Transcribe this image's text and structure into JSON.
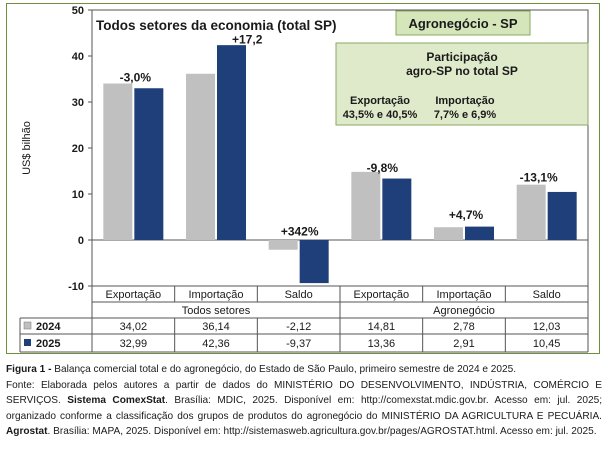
{
  "chart_data": {
    "type": "bar",
    "ylabel": "US$ bilhão",
    "ylim": [
      -10,
      50
    ],
    "yticks": [
      -10,
      0,
      10,
      20,
      30,
      40,
      50
    ],
    "grid": false,
    "categories": [
      "Exportação",
      "Importação",
      "Saldo",
      "Exportação",
      "Importação",
      "Saldo"
    ],
    "groups": [
      {
        "label": "Todos setores",
        "title": "Todos setores da economia (total SP)"
      },
      {
        "label": "Agronegócio",
        "title": "Agronegócio - SP"
      }
    ],
    "series": [
      {
        "name": "2024",
        "color": "#c0c0c0",
        "values": [
          34.02,
          36.14,
          -2.12,
          14.81,
          2.78,
          12.03
        ],
        "table": [
          "34,02",
          "36,14",
          "-2,12",
          "14,81",
          "2,78",
          "12,03"
        ]
      },
      {
        "name": "2025",
        "color": "#1f3f7a",
        "values": [
          32.99,
          42.36,
          -9.37,
          13.36,
          2.91,
          10.45
        ],
        "table": [
          "32,99",
          "42,36",
          "-9,37",
          "13,36",
          "2,91",
          "10,45"
        ]
      }
    ],
    "change_labels": [
      "-3,0%",
      "+17,2",
      "+342%",
      "-9,8%",
      "+4,7%",
      "-13,1%"
    ],
    "annotation": {
      "title_line1": "Participação",
      "title_line2": "agro-SP no total SP",
      "exp_label": "Exportação",
      "exp_value": "43,5% e 40,5%",
      "imp_label": "Importação",
      "imp_value": "7,7% e 6,9%"
    }
  },
  "caption": {
    "fig_label": "Figura 1 -",
    "fig_text": " Balança comercial total e do agronegócio, do Estado de São Paulo, primeiro semestre de 2024 e 2025.",
    "source_a": "Fonte: Elaborada pelos autores a partir de dados do MINISTÉRIO DO DESENVOLVIMENTO, INDÚSTRIA, COMÉRCIO E SERVIÇOS.",
    "source_b_bold": "Sistema ComexStat",
    "source_b": ". Brasília: MDIC, 2025. Disponível em: http://comexstat.mdic.gov.br. Acesso em: jul. 2025; organizado conforme a classificação dos grupos de produtos do agronegócio do MINISTÉRIO DA AGRICULTURA E PECUÁRIA. ",
    "source_c_bold": "Agrostat",
    "source_c": ". Brasília: MAPA, 2025. Disponível em: http://sistemasweb.agricultura.gov.br/pages/AGROSTAT.html. Acesso em: jul. 2025."
  }
}
